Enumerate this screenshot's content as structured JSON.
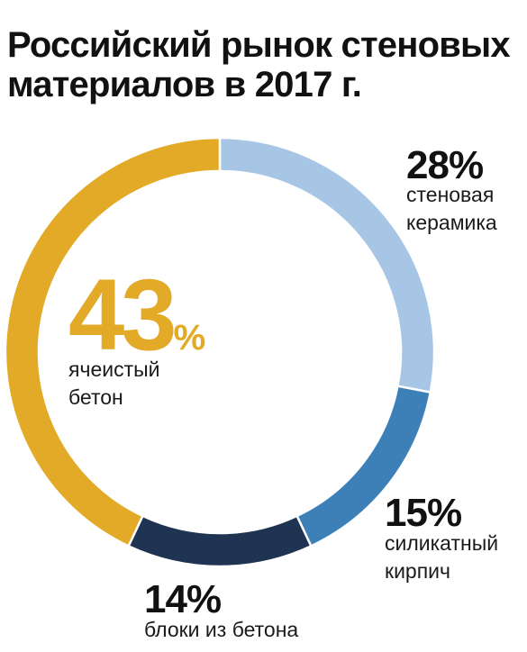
{
  "title": "Российский рынок стеновых материалов в 2017 г.",
  "chart_data": {
    "type": "pie",
    "title": "Российский рынок стеновых материалов в 2017 г.",
    "unit": "%",
    "categories": [
      "стеновая керамика",
      "силикатный кирпич",
      "блоки из бетона",
      "ячеистый бетон"
    ],
    "values": [
      28,
      15,
      14,
      43
    ],
    "value_labels": [
      "28%",
      "15%",
      "14%",
      "43"
    ],
    "colors": [
      "#a7c6e6",
      "#3d80b8",
      "#1e3452",
      "#e2aa26"
    ],
    "label_lines": [
      [
        "стеновая",
        "керамика"
      ],
      [
        "силикатный",
        "кирпич"
      ],
      [
        "блоки из бетона"
      ],
      [
        "ячеистый",
        "бетон"
      ]
    ],
    "highlight_sign": "%"
  }
}
